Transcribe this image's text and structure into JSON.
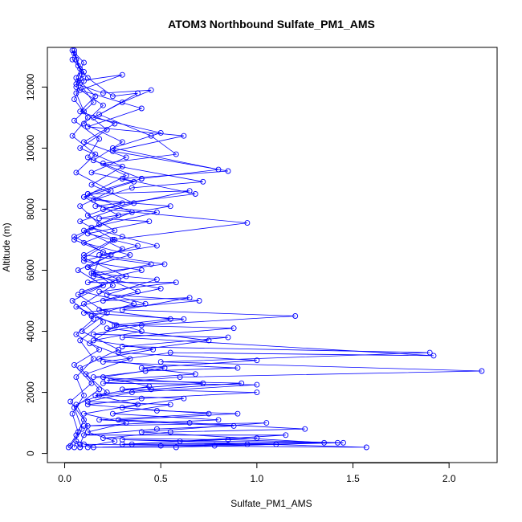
{
  "chart_data": {
    "type": "line",
    "title": "ATOM3 Northbound Sulfate_PM1_AMS",
    "xlabel": "Sulfate_PM1_AMS",
    "ylabel": "Altitude (m)",
    "xlim": [
      -0.09,
      2.25
    ],
    "ylim": [
      -300,
      13300
    ],
    "xticks": [
      0.0,
      0.5,
      1.0,
      1.5,
      2.0
    ],
    "xtick_labels": [
      "0.0",
      "0.5",
      "1.0",
      "1.5",
      "2.0"
    ],
    "yticks": [
      0,
      2000,
      4000,
      6000,
      8000,
      10000,
      12000
    ],
    "ytick_labels": [
      "0",
      "2000",
      "4000",
      "6000",
      "8000",
      "10000",
      "12000"
    ],
    "grid": false,
    "legend": "none",
    "colors": {
      "series": "#0000ff",
      "axis": "#000000",
      "background": "#ffffff"
    },
    "series": [
      {
        "points": [
          [
            0.05,
            200
          ],
          [
            0.07,
            700
          ],
          [
            0.04,
            1300
          ],
          [
            0.1,
            1900
          ],
          [
            0.06,
            2500
          ],
          [
            0.15,
            3100
          ],
          [
            0.08,
            3700
          ],
          [
            0.2,
            4300
          ],
          [
            0.1,
            4900
          ],
          [
            0.25,
            5500
          ],
          [
            0.12,
            6100
          ],
          [
            0.3,
            6700
          ],
          [
            0.1,
            7300
          ],
          [
            0.35,
            7900
          ],
          [
            0.12,
            8500
          ],
          [
            0.4,
            9000
          ],
          [
            0.15,
            9600
          ],
          [
            0.3,
            10200
          ],
          [
            0.1,
            10800
          ],
          [
            0.2,
            11400
          ],
          [
            0.06,
            12000
          ],
          [
            0.08,
            12600
          ],
          [
            0.05,
            13200
          ],
          [
            0.04,
            12900
          ],
          [
            0.1,
            12500
          ],
          [
            0.06,
            12100
          ],
          [
            0.2,
            11800
          ],
          [
            0.45,
            11900
          ],
          [
            0.3,
            11500
          ],
          [
            0.15,
            11000
          ],
          [
            0.5,
            10500
          ],
          [
            0.25,
            10000
          ],
          [
            0.8,
            9300
          ],
          [
            0.4,
            9000
          ],
          [
            0.12,
            8500
          ],
          [
            0.65,
            8600
          ],
          [
            0.2,
            8000
          ],
          [
            0.95,
            7550
          ],
          [
            0.25,
            7000
          ],
          [
            0.1,
            6500
          ],
          [
            0.45,
            6200
          ],
          [
            0.15,
            5800
          ],
          [
            0.5,
            5400
          ],
          [
            0.2,
            5000
          ],
          [
            0.65,
            5100
          ],
          [
            0.3,
            4700
          ],
          [
            1.2,
            4500
          ],
          [
            0.4,
            4200
          ],
          [
            0.15,
            3900
          ],
          [
            0.85,
            3800
          ],
          [
            0.3,
            3500
          ],
          [
            1.9,
            3300
          ],
          [
            0.5,
            3000
          ],
          [
            2.17,
            2700
          ],
          [
            0.6,
            2500
          ],
          [
            0.2,
            2300
          ],
          [
            1.0,
            2250
          ],
          [
            0.35,
            2000
          ],
          [
            0.12,
            1700
          ],
          [
            0.55,
            1600
          ],
          [
            0.25,
            1300
          ],
          [
            0.8,
            1100
          ],
          [
            0.1,
            900
          ],
          [
            1.05,
            1000
          ],
          [
            0.4,
            700
          ],
          [
            1.35,
            350
          ],
          [
            0.3,
            450
          ],
          [
            1.57,
            200
          ],
          [
            0.5,
            250
          ],
          [
            0.95,
            300
          ],
          [
            0.15,
            200
          ],
          [
            0.06,
            400
          ],
          [
            0.08,
            200
          ]
        ]
      },
      {
        "points": [
          [
            0.03,
            250
          ],
          [
            0.09,
            800
          ],
          [
            0.05,
            1500
          ],
          [
            0.18,
            2100
          ],
          [
            0.08,
            2800
          ],
          [
            0.28,
            3400
          ],
          [
            0.09,
            4000
          ],
          [
            0.22,
            4600
          ],
          [
            0.07,
            5200
          ],
          [
            0.32,
            5800
          ],
          [
            0.1,
            6400
          ],
          [
            0.26,
            7000
          ],
          [
            0.08,
            7600
          ],
          [
            0.36,
            8200
          ],
          [
            0.14,
            8800
          ],
          [
            0.3,
            9400
          ],
          [
            0.08,
            10000
          ],
          [
            0.22,
            10600
          ],
          [
            0.1,
            11200
          ],
          [
            0.06,
            11800
          ],
          [
            0.09,
            12400
          ],
          [
            0.05,
            13100
          ],
          [
            0.07,
            12700
          ],
          [
            0.12,
            12300
          ],
          [
            0.25,
            11700
          ],
          [
            0.38,
            11800
          ],
          [
            0.18,
            11100
          ],
          [
            0.45,
            10400
          ],
          [
            0.58,
            9800
          ],
          [
            0.2,
            9500
          ],
          [
            0.72,
            8900
          ],
          [
            0.35,
            8700
          ],
          [
            0.15,
            8300
          ],
          [
            0.55,
            8100
          ],
          [
            0.18,
            7700
          ],
          [
            0.44,
            7600
          ],
          [
            0.12,
            7200
          ],
          [
            0.38,
            6800
          ],
          [
            0.1,
            6300
          ],
          [
            0.4,
            6000
          ],
          [
            0.12,
            5600
          ],
          [
            0.58,
            5600
          ],
          [
            0.18,
            5300
          ],
          [
            0.42,
            4900
          ],
          [
            0.1,
            4600
          ],
          [
            0.62,
            4400
          ],
          [
            0.22,
            4100
          ],
          [
            0.75,
            3700
          ],
          [
            0.28,
            3300
          ],
          [
            1.0,
            3050
          ],
          [
            0.4,
            2800
          ],
          [
            0.68,
            2600
          ],
          [
            0.22,
            2400
          ],
          [
            0.92,
            2300
          ],
          [
            0.45,
            2100
          ],
          [
            0.18,
            1900
          ],
          [
            0.62,
            1800
          ],
          [
            0.3,
            1500
          ],
          [
            0.75,
            1300
          ],
          [
            0.18,
            1100
          ],
          [
            0.88,
            900
          ],
          [
            0.48,
            800
          ],
          [
            0.1,
            600
          ],
          [
            1.15,
            600
          ],
          [
            0.6,
            400
          ],
          [
            1.0,
            500
          ],
          [
            0.3,
            300
          ],
          [
            1.45,
            350
          ],
          [
            0.78,
            250
          ],
          [
            0.1,
            300
          ]
        ]
      },
      {
        "points": [
          [
            0.08,
            300
          ],
          [
            0.12,
            900
          ],
          [
            0.06,
            1600
          ],
          [
            0.22,
            2000
          ],
          [
            0.11,
            2600
          ],
          [
            0.34,
            3100
          ],
          [
            0.13,
            3600
          ],
          [
            0.27,
            4200
          ],
          [
            0.06,
            4800
          ],
          [
            0.38,
            5300
          ],
          [
            0.15,
            5900
          ],
          [
            0.2,
            6600
          ],
          [
            0.05,
            7100
          ],
          [
            0.28,
            7800
          ],
          [
            0.1,
            8400
          ],
          [
            0.32,
            9100
          ],
          [
            0.12,
            9700
          ],
          [
            0.18,
            10300
          ],
          [
            0.05,
            10900
          ],
          [
            0.15,
            11500
          ],
          [
            0.07,
            12200
          ],
          [
            0.3,
            12400
          ],
          [
            0.08,
            11900
          ],
          [
            0.4,
            11300
          ],
          [
            0.12,
            10700
          ],
          [
            0.62,
            10400
          ],
          [
            0.25,
            9900
          ],
          [
            0.85,
            9250
          ],
          [
            0.3,
            9000
          ],
          [
            0.68,
            8500
          ],
          [
            0.16,
            8100
          ],
          [
            0.48,
            7900
          ],
          [
            0.14,
            7400
          ],
          [
            0.3,
            7100
          ],
          [
            0.48,
            6800
          ],
          [
            0.18,
            6500
          ],
          [
            0.52,
            6200
          ],
          [
            0.14,
            5900
          ],
          [
            0.48,
            5700
          ],
          [
            0.22,
            5200
          ],
          [
            0.7,
            5000
          ],
          [
            0.18,
            4700
          ],
          [
            0.55,
            4400
          ],
          [
            0.26,
            4200
          ],
          [
            0.88,
            4100
          ],
          [
            0.3,
            3800
          ],
          [
            1.92,
            3200
          ],
          [
            0.55,
            3300
          ],
          [
            0.2,
            3000
          ],
          [
            0.9,
            2800
          ],
          [
            0.42,
            2700
          ],
          [
            0.15,
            2500
          ],
          [
            0.72,
            2300
          ],
          [
            0.3,
            2100
          ],
          [
            1.0,
            2000
          ],
          [
            0.4,
            1800
          ],
          [
            0.12,
            1600
          ],
          [
            0.48,
            1400
          ],
          [
            0.9,
            1300
          ],
          [
            0.28,
            1100
          ],
          [
            0.65,
            1000
          ],
          [
            1.25,
            800
          ],
          [
            0.55,
            700
          ],
          [
            0.2,
            500
          ],
          [
            0.85,
            450
          ],
          [
            1.42,
            350
          ],
          [
            0.35,
            300
          ],
          [
            1.1,
            300
          ],
          [
            0.58,
            200
          ],
          [
            0.12,
            200
          ]
        ]
      },
      {
        "points": [
          [
            0.02,
            200
          ],
          [
            0.06,
            600
          ],
          [
            0.1,
            1100
          ],
          [
            0.03,
            1700
          ],
          [
            0.14,
            2300
          ],
          [
            0.05,
            2900
          ],
          [
            0.18,
            3400
          ],
          [
            0.06,
            3900
          ],
          [
            0.15,
            4400
          ],
          [
            0.04,
            5000
          ],
          [
            0.2,
            5500
          ],
          [
            0.07,
            6000
          ],
          [
            0.24,
            6500
          ],
          [
            0.05,
            7000
          ],
          [
            0.18,
            7500
          ],
          [
            0.08,
            8100
          ],
          [
            0.24,
            8600
          ],
          [
            0.06,
            9200
          ],
          [
            0.16,
            9800
          ],
          [
            0.04,
            10400
          ],
          [
            0.12,
            11000
          ],
          [
            0.05,
            11600
          ],
          [
            0.1,
            12200
          ],
          [
            0.06,
            12900
          ],
          [
            0.04,
            13200
          ],
          [
            0.1,
            12800
          ],
          [
            0.06,
            12300
          ],
          [
            0.16,
            11700
          ],
          [
            0.08,
            11200
          ],
          [
            0.26,
            10800
          ],
          [
            0.1,
            10200
          ],
          [
            0.32,
            9700
          ],
          [
            0.14,
            9200
          ],
          [
            0.36,
            8900
          ],
          [
            0.1,
            8400
          ],
          [
            0.3,
            8200
          ],
          [
            0.12,
            7800
          ],
          [
            0.26,
            7300
          ],
          [
            0.1,
            6900
          ],
          [
            0.34,
            6500
          ],
          [
            0.12,
            6100
          ],
          [
            0.28,
            5700
          ],
          [
            0.09,
            5300
          ],
          [
            0.36,
            4900
          ],
          [
            0.14,
            4500
          ],
          [
            0.4,
            4000
          ],
          [
            0.15,
            3700
          ],
          [
            0.46,
            3400
          ],
          [
            0.18,
            3100
          ],
          [
            0.52,
            2800
          ],
          [
            0.2,
            2500
          ],
          [
            0.44,
            2200
          ],
          [
            0.16,
            1900
          ],
          [
            0.38,
            1600
          ],
          [
            0.1,
            1300
          ],
          [
            0.32,
            1000
          ],
          [
            0.12,
            700
          ],
          [
            0.26,
            400
          ],
          [
            0.08,
            200
          ]
        ]
      }
    ]
  }
}
